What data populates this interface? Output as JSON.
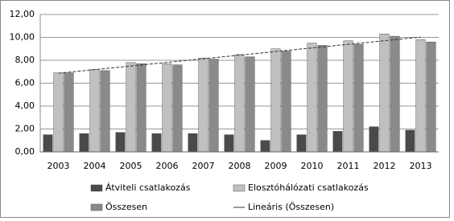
{
  "chart_data": {
    "type": "bar",
    "categories": [
      "2003",
      "2004",
      "2005",
      "2006",
      "2007",
      "2008",
      "2009",
      "2010",
      "2011",
      "2012",
      "2013"
    ],
    "series": [
      {
        "name": "Átviteli csatlakozás",
        "color": "#4a4a4a",
        "values": [
          1.5,
          1.6,
          1.7,
          1.6,
          1.6,
          1.5,
          1.0,
          1.5,
          1.8,
          2.2,
          1.9
        ]
      },
      {
        "name": "Elosztóhálózati csatlakozás",
        "color": "#c0c0c0",
        "values": [
          6.9,
          7.2,
          7.8,
          7.7,
          8.2,
          8.5,
          9.0,
          9.5,
          9.7,
          10.3,
          9.8
        ]
      },
      {
        "name": "Összesen",
        "color": "#8a8a8a",
        "values": [
          6.9,
          7.1,
          7.7,
          7.6,
          8.1,
          8.3,
          8.8,
          9.3,
          9.4,
          10.1,
          9.6
        ],
        "trendline_name": "Lineáris (Összesen)"
      }
    ],
    "ylim": [
      0,
      12
    ],
    "yticks": [
      {
        "value": 0,
        "label": "0,00"
      },
      {
        "value": 2,
        "label": "2,00"
      },
      {
        "value": 4,
        "label": "4,00"
      },
      {
        "value": 6,
        "label": "6,00"
      },
      {
        "value": 8,
        "label": "8,00"
      },
      {
        "value": 10,
        "label": "10,00"
      },
      {
        "value": 12,
        "label": "12,00"
      }
    ],
    "grid": true
  }
}
